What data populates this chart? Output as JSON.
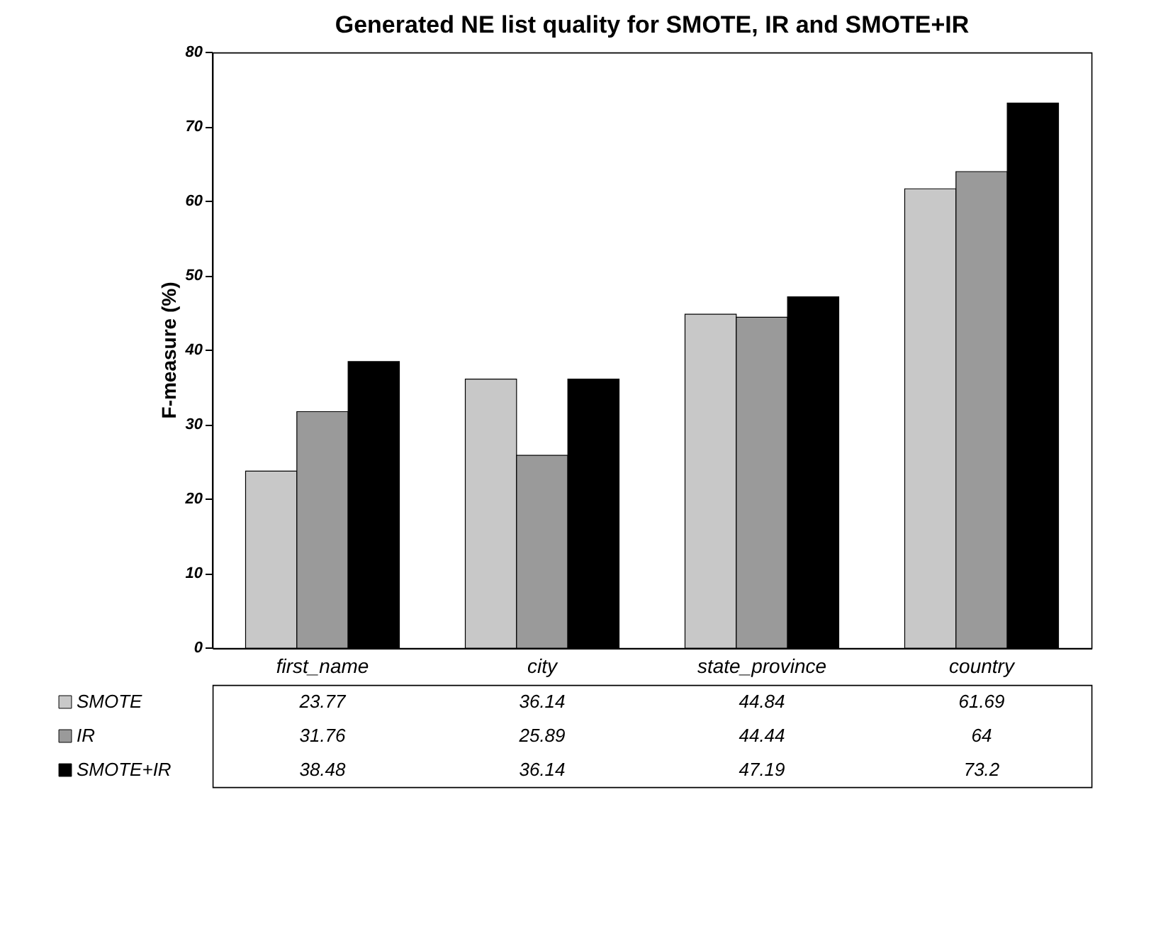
{
  "chart_data": {
    "type": "bar",
    "title": "Generated NE list quality for SMOTE, IR and SMOTE+IR",
    "ylabel": "F-measure (%)",
    "categories": [
      "first_name",
      "city",
      "state_province",
      "country"
    ],
    "series": [
      {
        "name": "SMOTE",
        "color": "#c8c8c8",
        "values": [
          23.77,
          36.14,
          44.84,
          61.69
        ]
      },
      {
        "name": "IR",
        "color": "#9a9a9a",
        "values": [
          31.76,
          25.89,
          44.44,
          64
        ]
      },
      {
        "name": "SMOTE+IR",
        "color": "#000000",
        "values": [
          38.48,
          36.14,
          47.19,
          73.2
        ]
      }
    ],
    "ylim": [
      0,
      80
    ],
    "yticks": [
      0,
      10,
      20,
      30,
      40,
      50,
      60,
      70,
      80
    ],
    "grid": false,
    "legend": "bottom",
    "data_labels": true
  }
}
